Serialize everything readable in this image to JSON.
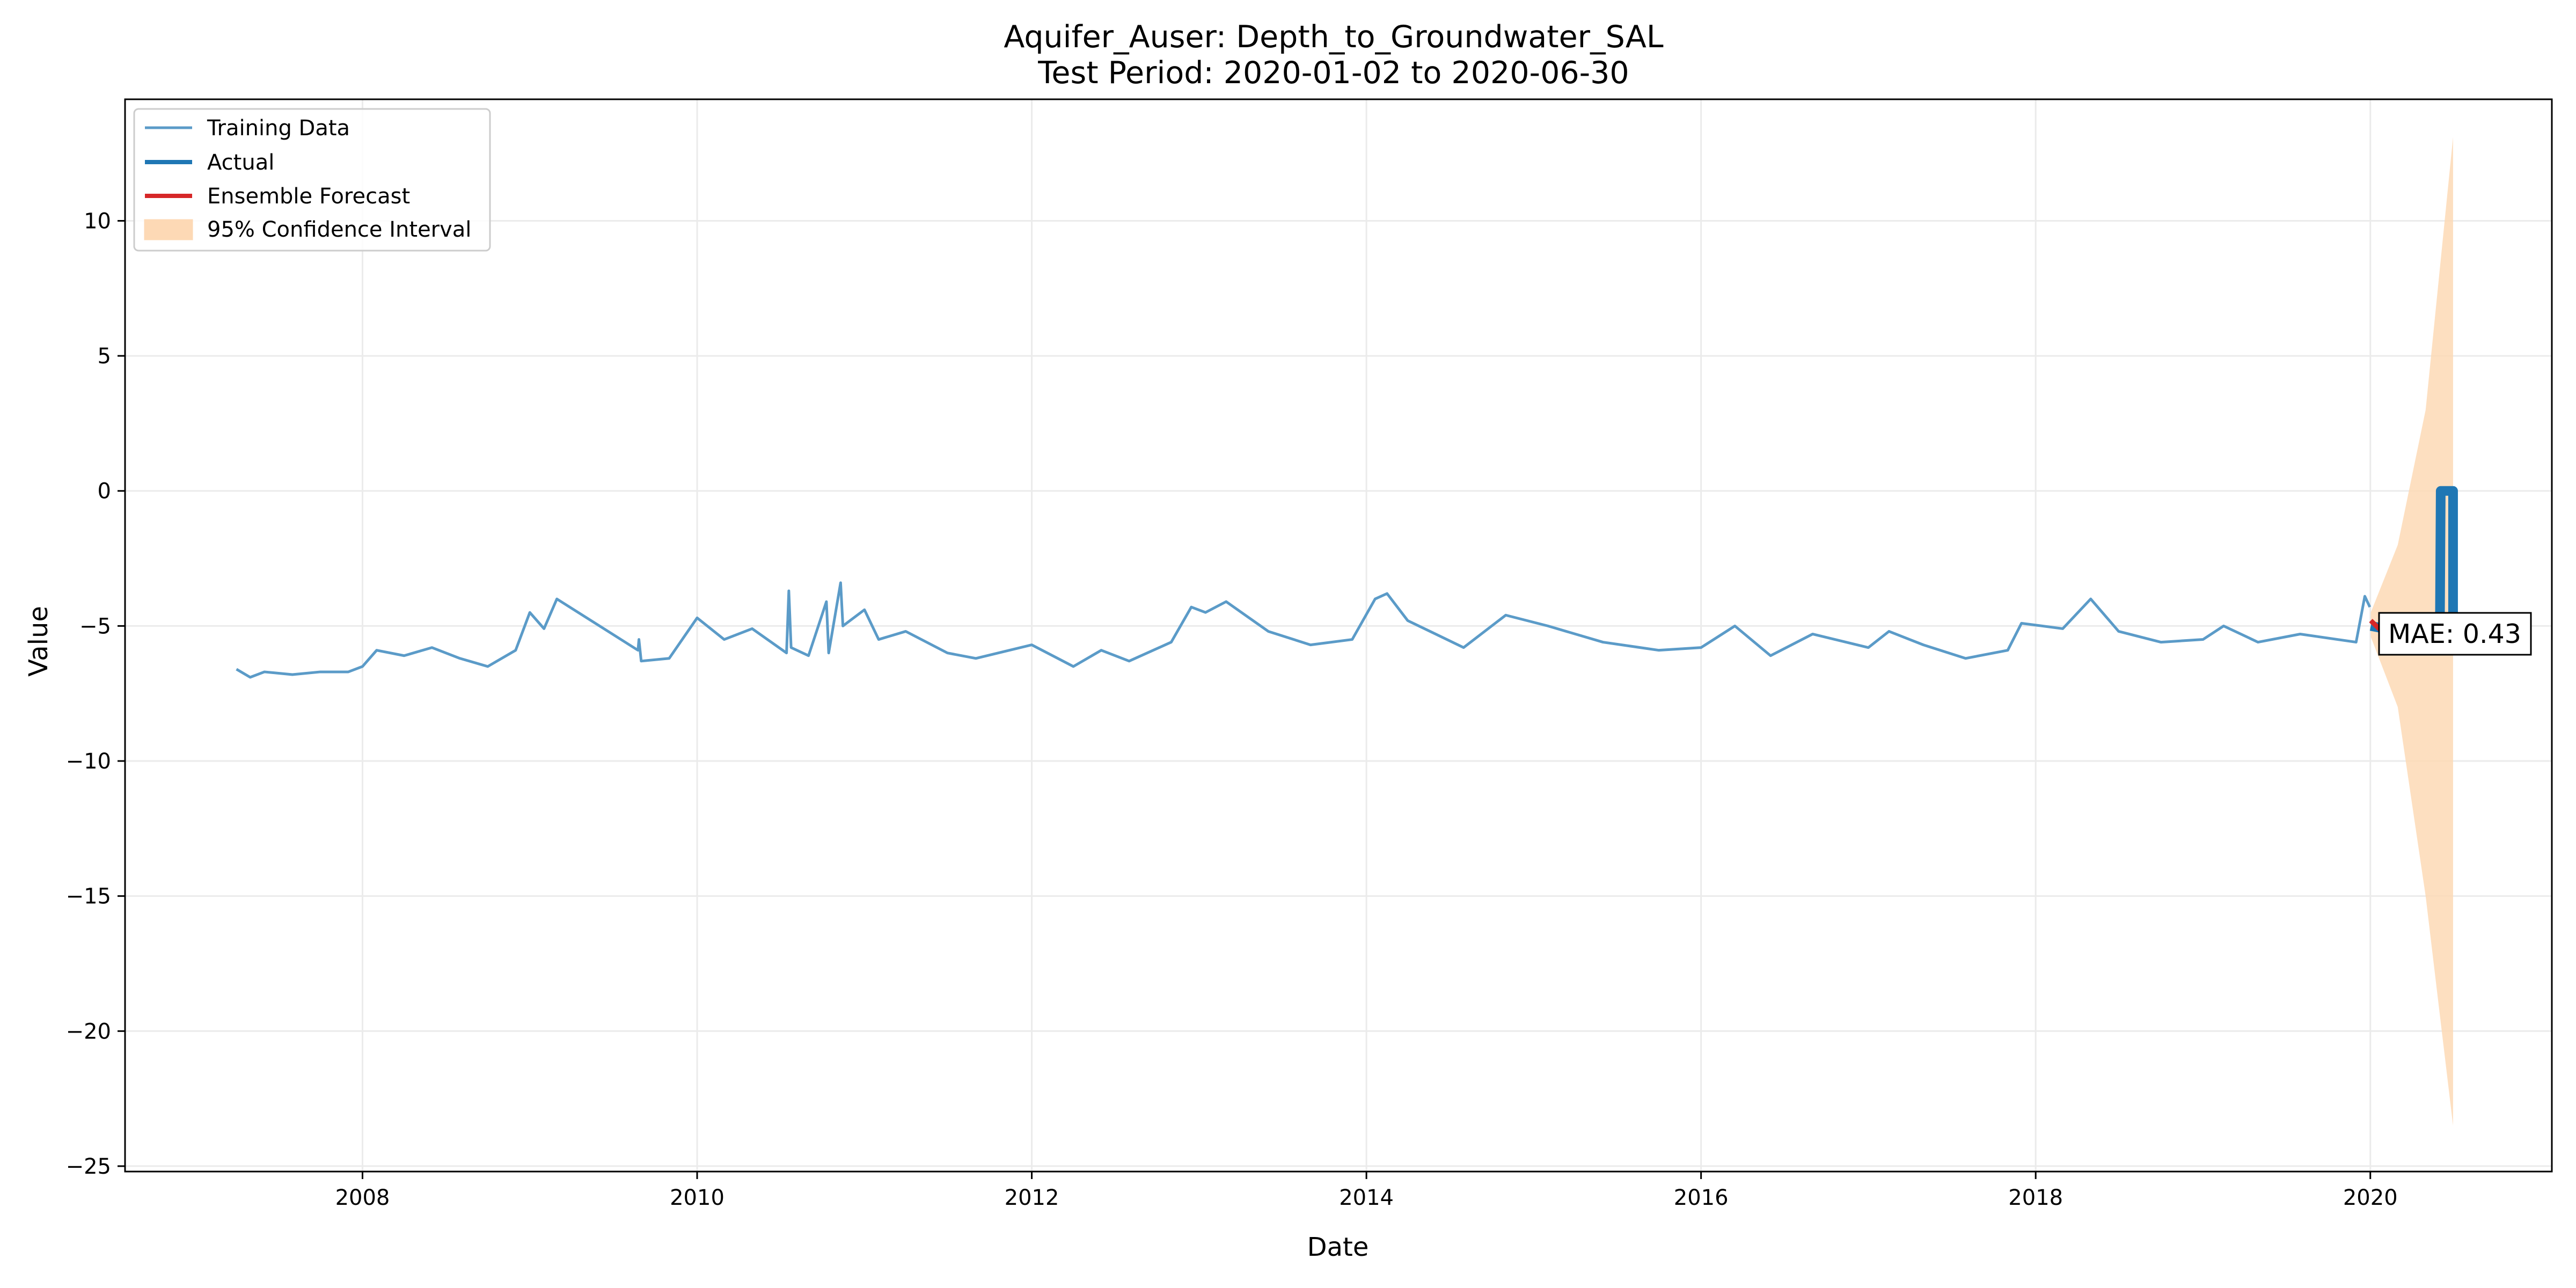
{
  "chart_data": {
    "type": "line",
    "title": "Aquifer_Auser: Depth_to_Groundwater_SAL",
    "subtitle": "Test Period: 2020-01-02 to 2020-06-30",
    "xlabel": "Date",
    "ylabel": "Value",
    "xlim": [
      "2006-08-01",
      "2021-02-01"
    ],
    "ylim": [
      -25.2,
      14.5
    ],
    "x_ticks": [
      "2008",
      "2010",
      "2012",
      "2014",
      "2016",
      "2018",
      "2020"
    ],
    "y_ticks": [
      "10",
      "5",
      "0",
      "−5",
      "−10",
      "−15",
      "−20",
      "−25"
    ],
    "grid": true,
    "legend_position": "top-left",
    "colors": {
      "training": "#5b9bc8",
      "actual": "#1f77b4",
      "forecast": "#d62728",
      "ci_fill": "#fdd9b5"
    },
    "legend": [
      "Training Data",
      "Actual",
      "Ensemble Forecast",
      "95% Confidence Interval"
    ],
    "annotation": "MAE: 0.43",
    "series": [
      {
        "name": "Training Data",
        "points": [
          [
            "2007-04-01",
            -6.6
          ],
          [
            "2007-05-01",
            -6.9
          ],
          [
            "2007-06-01",
            -6.7
          ],
          [
            "2007-08-01",
            -6.8
          ],
          [
            "2007-10-01",
            -6.7
          ],
          [
            "2007-12-01",
            -6.7
          ],
          [
            "2008-01-01",
            -6.5
          ],
          [
            "2008-02-01",
            -5.9
          ],
          [
            "2008-04-01",
            -6.1
          ],
          [
            "2008-06-01",
            -5.8
          ],
          [
            "2008-08-01",
            -6.2
          ],
          [
            "2008-10-01",
            -6.5
          ],
          [
            "2008-12-01",
            -5.9
          ],
          [
            "2009-01-01",
            -4.5
          ],
          [
            "2009-02-01",
            -5.1
          ],
          [
            "2009-03-01",
            -4.0
          ],
          [
            "2009-08-25",
            -5.9
          ],
          [
            "2009-08-27",
            -5.5
          ],
          [
            "2009-09-01",
            -6.3
          ],
          [
            "2009-11-01",
            -6.2
          ],
          [
            "2010-01-01",
            -4.7
          ],
          [
            "2010-03-01",
            -5.5
          ],
          [
            "2010-05-01",
            -5.1
          ],
          [
            "2010-07-15",
            -6.0
          ],
          [
            "2010-07-20",
            -3.7
          ],
          [
            "2010-07-25",
            -5.8
          ],
          [
            "2010-09-01",
            -6.1
          ],
          [
            "2010-10-10",
            -4.1
          ],
          [
            "2010-10-15",
            -6.0
          ],
          [
            "2010-11-10",
            -3.4
          ],
          [
            "2010-11-15",
            -5.0
          ],
          [
            "2011-01-01",
            -4.4
          ],
          [
            "2011-02-01",
            -5.5
          ],
          [
            "2011-04-01",
            -5.2
          ],
          [
            "2011-07-01",
            -6.0
          ],
          [
            "2011-09-01",
            -6.2
          ],
          [
            "2012-01-01",
            -5.7
          ],
          [
            "2012-04-01",
            -6.5
          ],
          [
            "2012-06-01",
            -5.9
          ],
          [
            "2012-08-01",
            -6.3
          ],
          [
            "2012-11-01",
            -5.6
          ],
          [
            "2012-12-15",
            -4.3
          ],
          [
            "2013-01-15",
            -4.5
          ],
          [
            "2013-03-01",
            -4.1
          ],
          [
            "2013-06-01",
            -5.2
          ],
          [
            "2013-09-01",
            -5.7
          ],
          [
            "2013-12-01",
            -5.5
          ],
          [
            "2014-01-20",
            -4.0
          ],
          [
            "2014-02-15",
            -3.8
          ],
          [
            "2014-04-01",
            -4.8
          ],
          [
            "2014-08-01",
            -5.8
          ],
          [
            "2014-11-01",
            -4.6
          ],
          [
            "2015-02-01",
            -5.0
          ],
          [
            "2015-06-01",
            -5.6
          ],
          [
            "2015-10-01",
            -5.9
          ],
          [
            "2016-01-01",
            -5.8
          ],
          [
            "2016-03-15",
            -5.0
          ],
          [
            "2016-06-01",
            -6.1
          ],
          [
            "2016-09-01",
            -5.3
          ],
          [
            "2017-01-01",
            -5.8
          ],
          [
            "2017-02-15",
            -5.2
          ],
          [
            "2017-05-01",
            -5.7
          ],
          [
            "2017-08-01",
            -6.2
          ],
          [
            "2017-11-01",
            -5.9
          ],
          [
            "2017-12-01",
            -4.9
          ],
          [
            "2018-03-01",
            -5.1
          ],
          [
            "2018-05-01",
            -4.0
          ],
          [
            "2018-07-01",
            -5.2
          ],
          [
            "2018-10-01",
            -5.6
          ],
          [
            "2019-01-01",
            -5.5
          ],
          [
            "2019-02-15",
            -5.0
          ],
          [
            "2019-05-01",
            -5.6
          ],
          [
            "2019-08-01",
            -5.3
          ],
          [
            "2019-12-01",
            -5.6
          ],
          [
            "2019-12-20",
            -3.9
          ],
          [
            "2019-12-31",
            -4.3
          ]
        ]
      },
      {
        "name": "Actual",
        "points": [
          [
            "2020-01-02",
            -5.0
          ],
          [
            "2020-06-01",
            -5.5
          ],
          [
            "2020-06-03",
            0.0
          ],
          [
            "2020-06-30",
            0.0
          ],
          [
            "2020-06-30",
            -5.3
          ]
        ]
      },
      {
        "name": "Ensemble Forecast",
        "points": [
          [
            "2020-01-02",
            -4.8
          ],
          [
            "2020-01-20",
            -5.1
          ],
          [
            "2020-02-05",
            -5.3
          ],
          [
            "2020-02-20",
            -5.0
          ]
        ]
      },
      {
        "name": "95% Confidence Interval",
        "upper": [
          [
            "2020-01-02",
            -4.5
          ],
          [
            "2020-03-01",
            -2.0
          ],
          [
            "2020-05-01",
            3.0
          ],
          [
            "2020-06-30",
            13.1
          ]
        ],
        "lower": [
          [
            "2020-01-02",
            -5.4
          ],
          [
            "2020-03-01",
            -8.0
          ],
          [
            "2020-05-01",
            -15.0
          ],
          [
            "2020-06-30",
            -23.5
          ]
        ]
      }
    ]
  }
}
